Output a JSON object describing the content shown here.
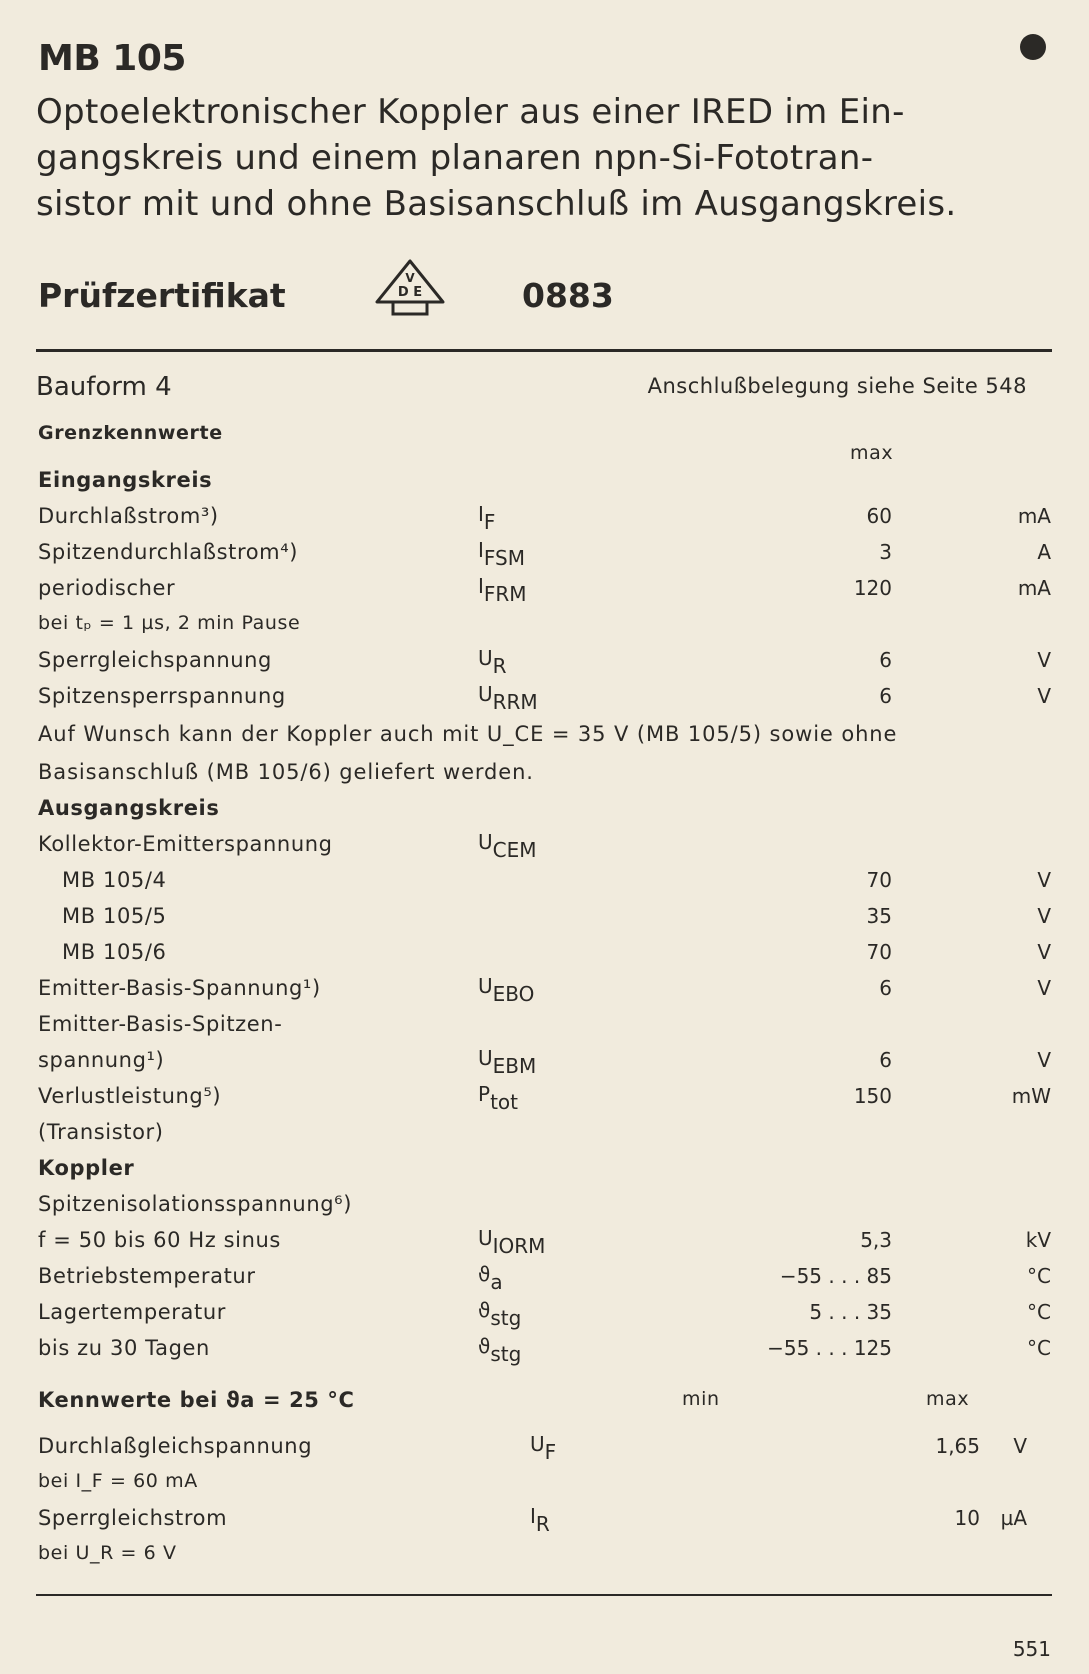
{
  "header": {
    "title": "MB 105",
    "description_lines": [
      "Optoelektronischer Koppler aus einer IRED im Ein-",
      "gangskreis und einem planaren npn-Si-Fototran-",
      "sistor mit und ohne Basisanschluß im Ausgangskreis."
    ],
    "certificate_label": "Prüfzertifikat",
    "certificate_logo": "DVE",
    "certificate_number": "0883"
  },
  "meta": {
    "bauform": "Bauform 4",
    "pinout_ref": "Anschlußbelegung siehe Seite 548"
  },
  "limits": {
    "heading": "Grenzkennwerte",
    "max_header": "max",
    "rows": [
      {
        "label": "Eingangskreis",
        "style": "bold"
      },
      {
        "label": "Durchlaßstrom³)",
        "sym": "I",
        "sub": "F",
        "value": "60",
        "unit": "mA"
      },
      {
        "label": "Spitzendurchlaßstrom⁴)",
        "sym": "I",
        "sub": "FSM",
        "value": "3",
        "unit": "A"
      },
      {
        "label": "periodischer",
        "sym": "I",
        "sub": "FRM",
        "value": "120",
        "unit": "mA"
      },
      {
        "label": "bei tₚ = 1 µs, 2 min Pause",
        "style": "small"
      },
      {
        "label": "Sperrgleichspannung",
        "sym": "U",
        "sub": "R",
        "value": "6",
        "unit": "V"
      },
      {
        "label": "Spitzensperrspannung",
        "sym": "U",
        "sub": "RRM",
        "value": "6",
        "unit": "V"
      },
      {
        "label": "Auf Wunsch kann der Koppler auch mit U_CE = 35 V (MB 105/5) sowie ohne",
        "style": "para"
      },
      {
        "label": "Basisanschluß (MB 105/6) geliefert werden.",
        "style": "para"
      },
      {
        "label": "Ausgangskreis",
        "style": "bold"
      },
      {
        "label": "Kollektor-Emitterspannung",
        "sym": "U",
        "sub": "CEM"
      },
      {
        "label": "MB 105/4",
        "indent": true,
        "value": "70",
        "unit": "V"
      },
      {
        "label": "MB 105/5",
        "indent": true,
        "value": "35",
        "unit": "V"
      },
      {
        "label": "MB 105/6",
        "indent": true,
        "value": "70",
        "unit": "V"
      },
      {
        "label": "Emitter-Basis-Spannung¹)",
        "sym": "U",
        "sub": "EBO",
        "value": "6",
        "unit": "V"
      },
      {
        "label": "Emitter-Basis-Spitzen-"
      },
      {
        "label": "spannung¹)",
        "sym": "U",
        "sub": "EBM",
        "value": "6",
        "unit": "V"
      },
      {
        "label": "Verlustleistung⁵)",
        "sym": "P",
        "sub": "tot",
        "value": "150",
        "unit": "mW"
      },
      {
        "label": "(Transistor)"
      },
      {
        "label": "Koppler",
        "style": "bold"
      },
      {
        "label": "Spitzenisolationsspannung⁶)"
      },
      {
        "label": "f = 50 bis 60 Hz sinus",
        "sym": "U",
        "sub": "IORM",
        "value": "5,3",
        "unit": "kV"
      },
      {
        "label": "Betriebstemperatur",
        "sym": "ϑ",
        "sub": "a",
        "value": "−55 . . . 85",
        "unit": "°C"
      },
      {
        "label": "Lagertemperatur",
        "sym": "ϑ",
        "sub": "stg",
        "value": "5 . . . 35",
        "unit": "°C"
      },
      {
        "label": "bis zu 30 Tagen",
        "sym": "ϑ",
        "sub": "stg",
        "value": "−55 . . . 125",
        "unit": "°C"
      }
    ]
  },
  "characteristics": {
    "heading": "Kennwerte bei ϑa = 25 °C",
    "min_header": "min",
    "max_header": "max",
    "rows": [
      {
        "label": "Durchlaßgleichspannung",
        "sym": "U",
        "sub": "F",
        "max": "1,65",
        "unit": "V"
      },
      {
        "label": "bei I_F = 60 mA",
        "style": "small"
      },
      {
        "label": "Sperrgleichstrom",
        "sym": "I",
        "sub": "R",
        "max": "10",
        "unit": "µA"
      },
      {
        "label": "bei U_R = 6 V",
        "style": "small"
      }
    ]
  },
  "footer": {
    "page_number": "551"
  },
  "colors": {
    "paper": "#f1ebdd",
    "ink": "#2b2926"
  }
}
